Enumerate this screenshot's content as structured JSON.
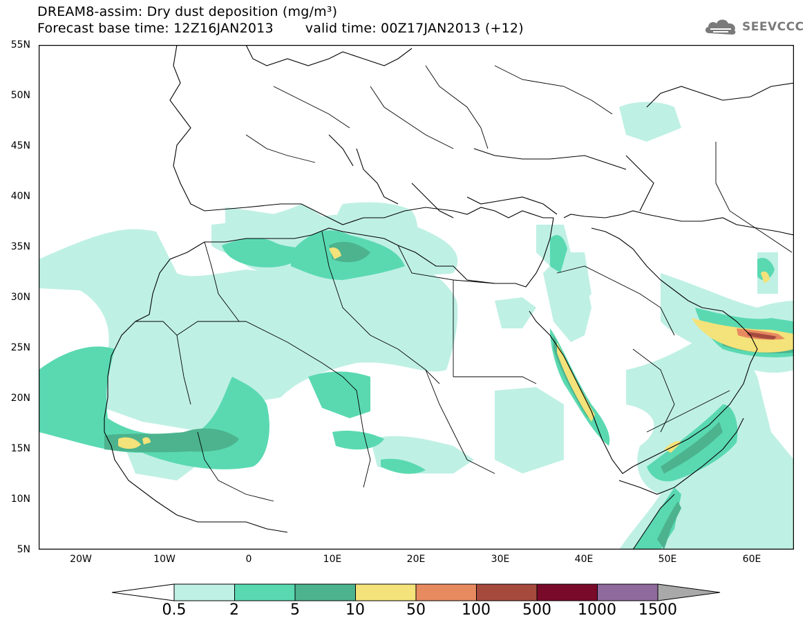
{
  "title": {
    "line1": "DREAM8-assim: Dry dust deposition (mg/m³)",
    "line2_base": "Forecast base time: 12Z16JAN2013",
    "line2_valid": "valid time: 00Z17JAN2013 (+12)"
  },
  "logo": {
    "text": "SEEVCCC",
    "icon": "cloud-logo-icon"
  },
  "map": {
    "lat_labels": [
      "55N",
      "50N",
      "45N",
      "40N",
      "35N",
      "30N",
      "25N",
      "20N",
      "15N",
      "10N",
      "5N"
    ],
    "lon_labels": [
      "20W",
      "10W",
      "0",
      "10E",
      "20E",
      "30E",
      "40E",
      "50E",
      "60E"
    ],
    "lon_range": [
      -25,
      65
    ],
    "lat_range": [
      5,
      55
    ]
  },
  "legend": {
    "labels": [
      "0.5",
      "2",
      "5",
      "10",
      "50",
      "100",
      "500",
      "1000",
      "1500"
    ],
    "colors": [
      "#bff0e4",
      "#5ad9b1",
      "#4cb38e",
      "#f4e27a",
      "#e88a60",
      "#a64a3e",
      "#7a0a2a",
      "#8f6a9c"
    ],
    "over_color": "#a9a9a9",
    "under_color": "#ffffff"
  },
  "colors": {
    "c1": "#bff0e4",
    "c2": "#5ad9b1",
    "c3": "#4cb38e",
    "c4": "#f4e27a",
    "c5": "#e88a60",
    "c6": "#a64a3e"
  }
}
